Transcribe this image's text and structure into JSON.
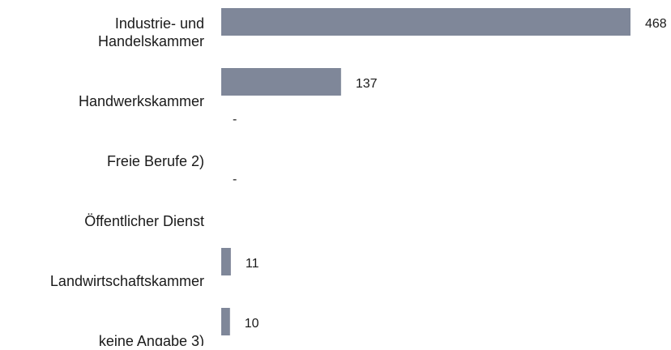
{
  "chart_data": {
    "type": "bar",
    "orientation": "horizontal",
    "categories": [
      [
        "Industrie- und",
        "Handelskammer"
      ],
      [
        "Handwerkskammer"
      ],
      [
        "Freie Berufe 2)"
      ],
      [
        "Öffentlicher Dienst"
      ],
      [
        "Landwirtschaftskammer"
      ],
      [
        "keine Angabe 3)"
      ]
    ],
    "values": [
      468,
      137,
      null,
      null,
      11,
      10
    ],
    "value_labels": [
      "468",
      "137",
      "-",
      "-",
      "11",
      "10"
    ],
    "title": "",
    "xlabel": "",
    "ylabel": "",
    "xlim": [
      0,
      468
    ],
    "grid": false,
    "legend": "none",
    "colors": {
      "bar": "#7f8799",
      "label_text": "#1a1a1a",
      "value_text": "#1a1a1a"
    }
  }
}
